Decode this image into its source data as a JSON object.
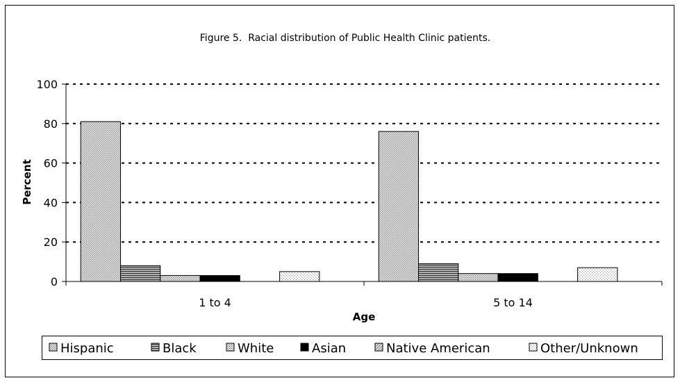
{
  "chart_data": {
    "type": "bar",
    "title": "Figure 5.  Racial distribution of Public Health Clinic patients.",
    "xlabel": "Age",
    "ylabel": "Percent",
    "categories": [
      "1 to 4",
      "5 to 14"
    ],
    "ylim": [
      0,
      100
    ],
    "yticks": [
      0,
      20,
      40,
      60,
      80,
      100
    ],
    "grid": true,
    "legend_position": "bottom",
    "series": [
      {
        "name": "Hispanic",
        "values": [
          81,
          76
        ],
        "color": "#d9d9d9",
        "pattern": "dense-diagonal"
      },
      {
        "name": "Black",
        "values": [
          8,
          9
        ],
        "color": "#808080",
        "pattern": "horizontal-lines"
      },
      {
        "name": "White",
        "values": [
          3,
          4
        ],
        "color": "#c8c8c8",
        "pattern": "fine-dots"
      },
      {
        "name": "Asian",
        "values": [
          3,
          4
        ],
        "color": "#000000",
        "pattern": "solid"
      },
      {
        "name": "Native American",
        "values": [
          0,
          0
        ],
        "color": "#c0c0c0",
        "pattern": "diagonal"
      },
      {
        "name": "Other/Unknown",
        "values": [
          5,
          7
        ],
        "color": "#eeeeee",
        "pattern": "sparse-dots"
      }
    ]
  }
}
